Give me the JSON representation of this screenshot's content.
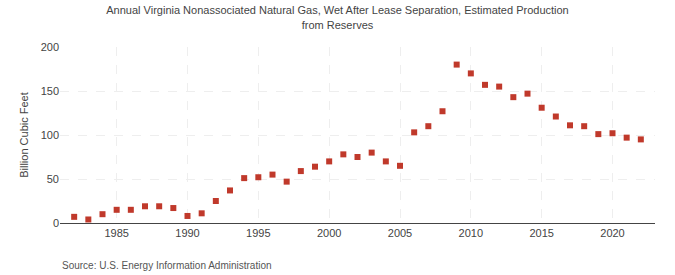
{
  "chart_data": {
    "type": "scatter",
    "title": "Annual Virginia Nonassociated Natural Gas, Wet After Lease Separation, Estimated Production\nfrom Reserves",
    "y_label": "Billion Cubic Feet",
    "source": "Source: U.S. Energy Information Administration",
    "x": [
      1982,
      1983,
      1984,
      1985,
      1986,
      1987,
      1988,
      1989,
      1990,
      1991,
      1992,
      1993,
      1994,
      1995,
      1996,
      1997,
      1998,
      1999,
      2000,
      2001,
      2002,
      2003,
      2004,
      2005,
      2006,
      2007,
      2008,
      2009,
      2010,
      2011,
      2012,
      2013,
      2014,
      2015,
      2016,
      2017,
      2018,
      2019,
      2020,
      2021,
      2022
    ],
    "values": [
      7,
      4,
      10,
      15,
      15,
      19,
      19,
      17,
      8,
      11,
      25,
      37,
      51,
      52,
      55,
      47,
      59,
      64,
      70,
      78,
      75,
      80,
      70,
      65,
      103,
      110,
      127,
      180,
      170,
      157,
      155,
      143,
      147,
      131,
      121,
      111,
      110,
      101,
      102,
      97,
      95
    ],
    "color": "#c0392b",
    "marker": "square",
    "xlim": [
      1981,
      2023
    ],
    "xticks": [
      1985,
      1990,
      1995,
      2000,
      2005,
      2010,
      2015,
      2020
    ],
    "ylim": [
      0,
      200
    ],
    "yticks": [
      0,
      50,
      100,
      150,
      200
    ],
    "grid": true
  }
}
